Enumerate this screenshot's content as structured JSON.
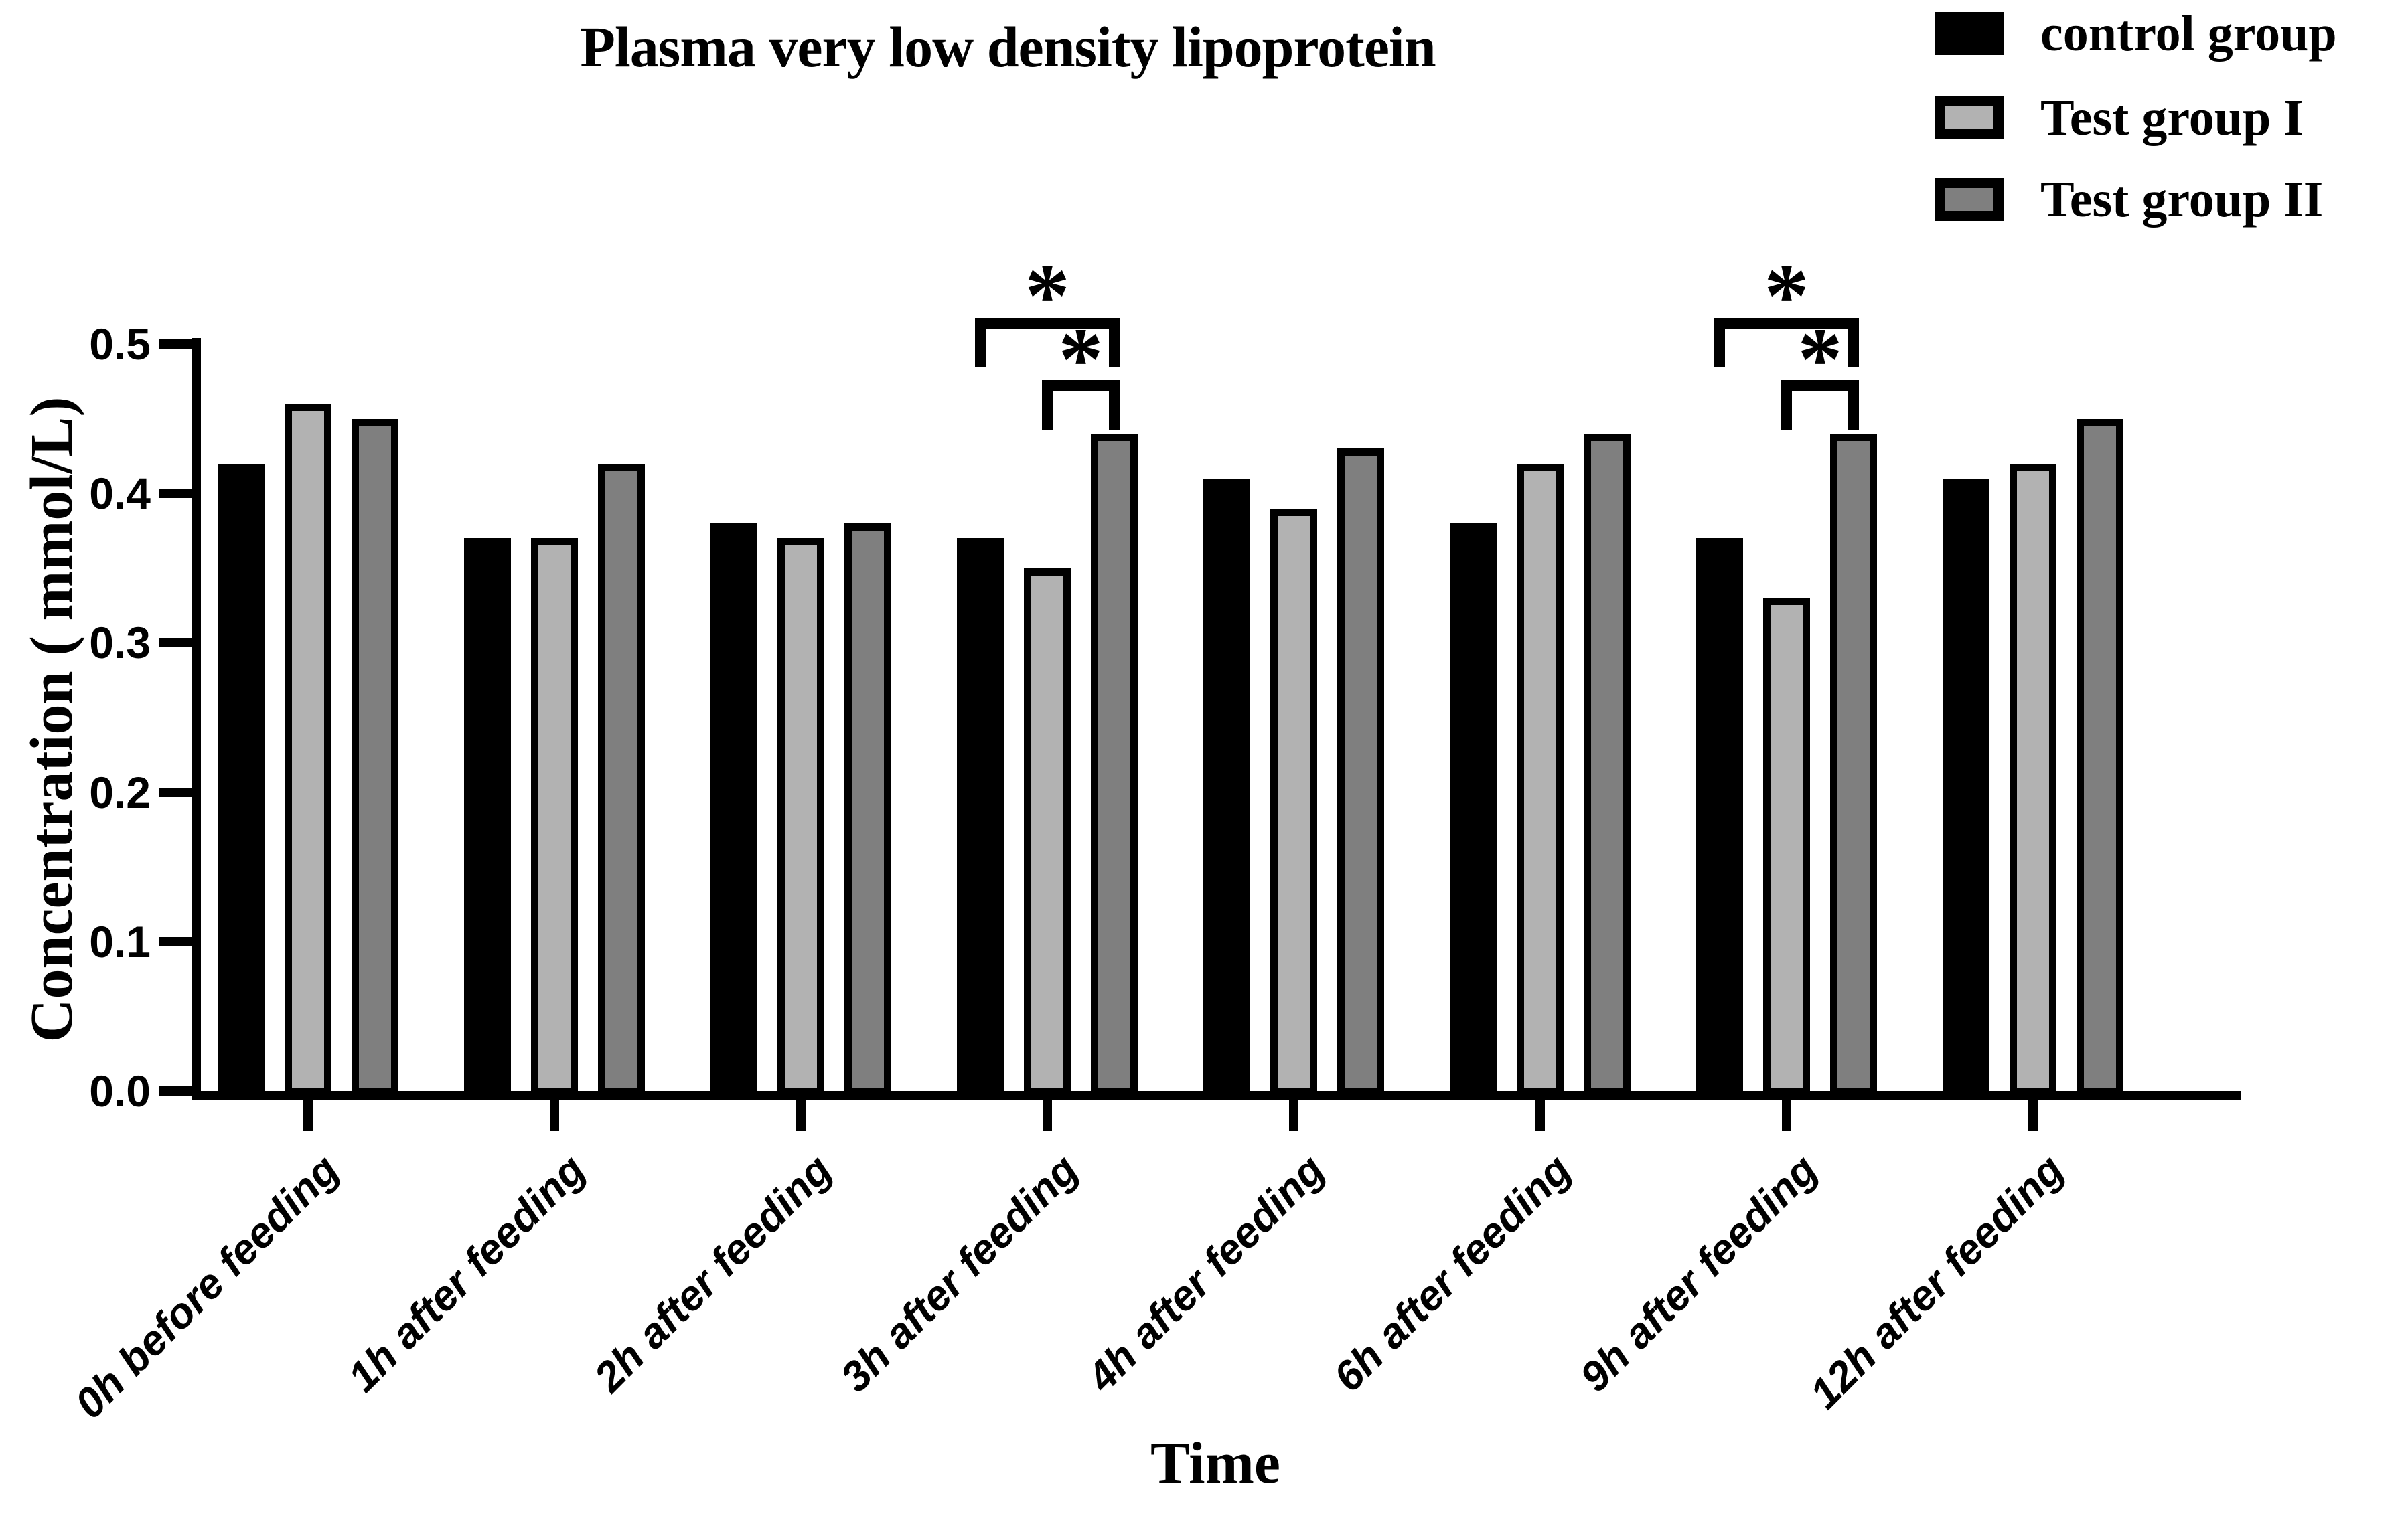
{
  "title": "Plasma very low density lipoprotein",
  "chart_data": {
    "type": "bar",
    "title": "Plasma very low density lipoprotein",
    "xlabel": "Time",
    "ylabel": "Concentration ( mmol/L)",
    "ylim": [
      0.0,
      0.5
    ],
    "yticks": [
      {
        "label": "0.0",
        "value": 0.0
      },
      {
        "label": "0.1",
        "value": 0.1
      },
      {
        "label": "0.2",
        "value": 0.2
      },
      {
        "label": "0.3",
        "value": 0.3
      },
      {
        "label": "0.4",
        "value": 0.4
      },
      {
        "label": "0.5",
        "value": 0.5
      }
    ],
    "grid": false,
    "legend_position": "top-right",
    "categories": [
      "0h before feeding",
      "1h after feeding",
      "2h after feeding",
      "3h after feeding",
      "4h after feeding",
      "6h after feeding",
      "9h after feeding",
      "12h after feeding"
    ],
    "series": [
      {
        "name": "control group",
        "fill": "#000000",
        "outline": "#000000",
        "values": [
          0.42,
          0.37,
          0.38,
          0.37,
          0.41,
          0.38,
          0.37,
          0.41
        ]
      },
      {
        "name": "Test group I",
        "fill": "#b2b2b2",
        "outline": "#000000",
        "values": [
          0.46,
          0.37,
          0.37,
          0.35,
          0.39,
          0.42,
          0.33,
          0.42
        ]
      },
      {
        "name": "Test group II",
        "fill": "#7f7f7f",
        "outline": "#000000",
        "values": [
          0.45,
          0.42,
          0.38,
          0.44,
          0.43,
          0.44,
          0.44,
          0.45
        ]
      }
    ],
    "significance": [
      {
        "category": "3h after feeding",
        "category_index": 3,
        "pairs": [
          {
            "from": 0,
            "to": 2,
            "from_series": "control group",
            "to_series": "Test group II",
            "label": "*",
            "level": "outer"
          },
          {
            "from": 1,
            "to": 2,
            "from_series": "Test group I",
            "to_series": "Test group II",
            "label": "*",
            "level": "inner"
          }
        ]
      },
      {
        "category": "9h after feeding",
        "category_index": 6,
        "pairs": [
          {
            "from": 0,
            "to": 2,
            "from_series": "control group",
            "to_series": "Test group II",
            "label": "*",
            "level": "outer"
          },
          {
            "from": 1,
            "to": 2,
            "from_series": "Test group I",
            "to_series": "Test group II",
            "label": "*",
            "level": "inner"
          }
        ]
      }
    ]
  },
  "colors": {
    "background": "#ffffff",
    "axis": "#000000",
    "control_fill": "#000000",
    "test1_fill": "#b2b2b2",
    "test2_fill": "#7f7f7f"
  }
}
